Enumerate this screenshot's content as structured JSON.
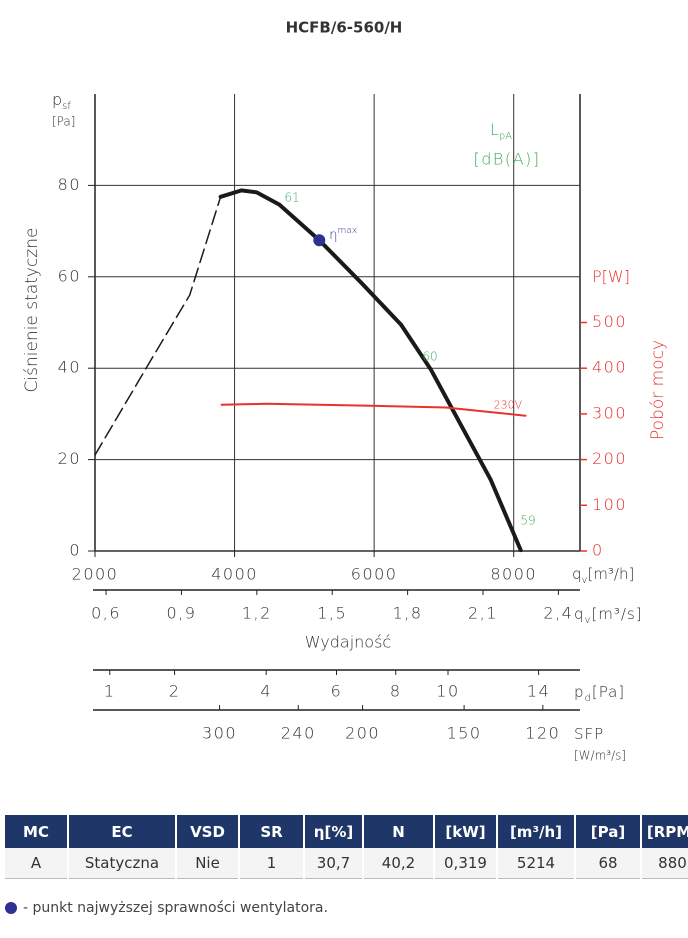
{
  "chart_data": {
    "type": "line",
    "title": "HCFB/6-560/H",
    "xlim": [
      2000,
      8950
    ],
    "xticks": [
      2000,
      4000,
      6000,
      8000
    ],
    "x_symbol": "q",
    "x_symbol_sub": "v",
    "x_unit": "[m³/h]",
    "x_label": "Wydajność",
    "ylim": [
      0,
      100
    ],
    "yticks": [
      0,
      20,
      40,
      60,
      80
    ],
    "y_label": "Ciśnienie statyczne",
    "y_symbol": "p",
    "y_symbol_sub": "sf",
    "y_unit": "[Pa]",
    "y2lim": [
      0,
      1000
    ],
    "y2ticks": [
      0,
      100,
      200,
      300,
      400,
      500
    ],
    "y2_symbol": "P",
    "y2_unit": "[W]",
    "y2_label": "Pobór mocy",
    "y2_color": "#e8322d",
    "sound_symbol": "L",
    "sound_symbol_sub": "pA",
    "sound_unit": "[dB(A)]",
    "sound_color": "#3aaa5c",
    "annotations": [
      "61",
      "60",
      "59"
    ],
    "grid": true,
    "extra_axes": [
      {
        "symbol": "q",
        "symbol_sub": "v",
        "unit": "[m³/s]",
        "scale": "linear",
        "xlim": [
          0.556,
          2.486
        ],
        "xticks": [
          {
            "value": 0.6,
            "label": "0,6"
          },
          {
            "value": 0.9,
            "label": "0,9"
          },
          {
            "value": 1.2,
            "label": "1,2"
          },
          {
            "value": 1.5,
            "label": "1,5"
          },
          {
            "value": 1.8,
            "label": "1,8"
          },
          {
            "value": 2.1,
            "label": "2,1"
          },
          {
            "value": 2.4,
            "label": "2,4"
          }
        ]
      },
      {
        "symbol": "p",
        "symbol_sub": "d",
        "unit": "[Pa]",
        "scale": "sqrt",
        "xlim": [
          0.82,
          16.05
        ],
        "xticks": [
          1,
          2,
          4,
          6,
          8,
          10,
          14
        ]
      },
      {
        "symbol": "SFP",
        "unit": "[W/m³/s]",
        "scale": "log",
        "xlim": [
          427,
          108
        ],
        "xticks": [
          300,
          240,
          200,
          150,
          120
        ]
      }
    ],
    "series": [
      {
        "color": "#1a1a1a",
        "style": "dashed",
        "x": [
          2000,
          2786,
          3357,
          3800
        ],
        "values": [
          21,
          41.4,
          56,
          77.5
        ]
      },
      {
        "color": "#1a1a1a",
        "style": "solid",
        "x": [
          3800,
          4100,
          4314,
          4643,
          5214,
          5814,
          6386,
          6814,
          7243,
          7671,
          8100
        ],
        "values": [
          77.5,
          78.9,
          78.5,
          75.8,
          68,
          58.7,
          49.5,
          39.7,
          27.6,
          15.6,
          0.2
        ]
      },
      {
        "name": "230V",
        "color": "#e8322d",
        "axis": "y2",
        "x": [
          3814,
          4457,
          5957,
          7029,
          8171
        ],
        "values": [
          320,
          322,
          318,
          314,
          296
        ]
      }
    ],
    "marker": {
      "label": "η",
      "label_sub": "max",
      "x": 5214,
      "value": 68,
      "color": "#2e3192"
    }
  },
  "table": {
    "header": [
      "MC",
      "EC",
      "VSD",
      "SR",
      "η[%]",
      "N",
      "[kW]",
      "[m³/h]",
      "[Pa]",
      "[RPM]"
    ],
    "rows": [
      [
        "A",
        "Statyczna",
        "Nie",
        1,
        "30,7",
        "40,2",
        "0,319",
        5214,
        68,
        880
      ]
    ]
  },
  "footnote": "- punkt najwyższej sprawności wentylatora."
}
